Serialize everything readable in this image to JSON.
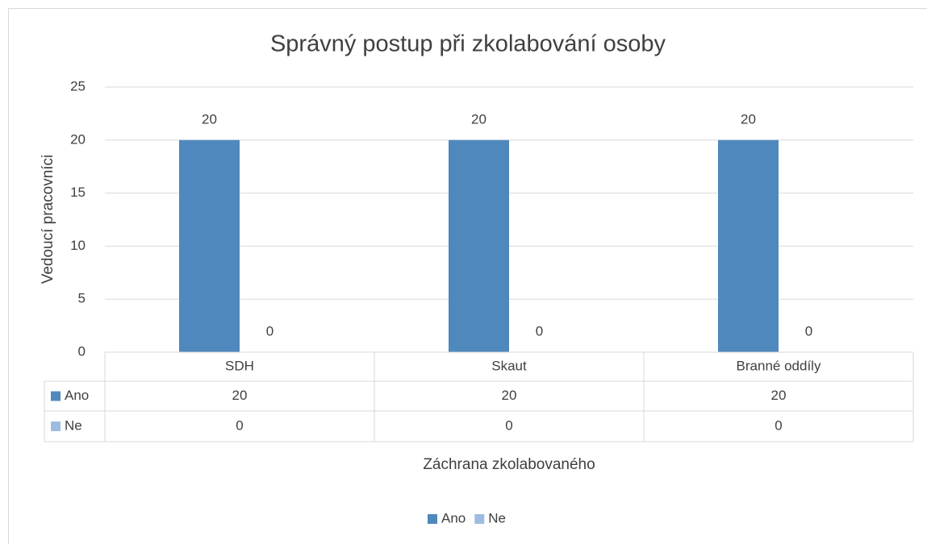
{
  "chart_data": {
    "type": "bar",
    "title": "Správný postup při zkolabování osoby",
    "x_label": "Záchrana zkolabovaného",
    "y_label": "Vedoucí pracovníci",
    "categories": [
      "SDH",
      "Skaut",
      "Branné oddíly"
    ],
    "series": [
      {
        "name": "Ano",
        "color": "#4f88bd",
        "values": [
          20,
          20,
          20
        ]
      },
      {
        "name": "Ne",
        "color": "#9dbde0",
        "values": [
          0,
          0,
          0
        ]
      }
    ],
    "ylim": [
      0,
      25
    ],
    "yticks": [
      0,
      5,
      10,
      15,
      20,
      25
    ],
    "grid": true,
    "legend": "bottom",
    "data_table": true
  }
}
